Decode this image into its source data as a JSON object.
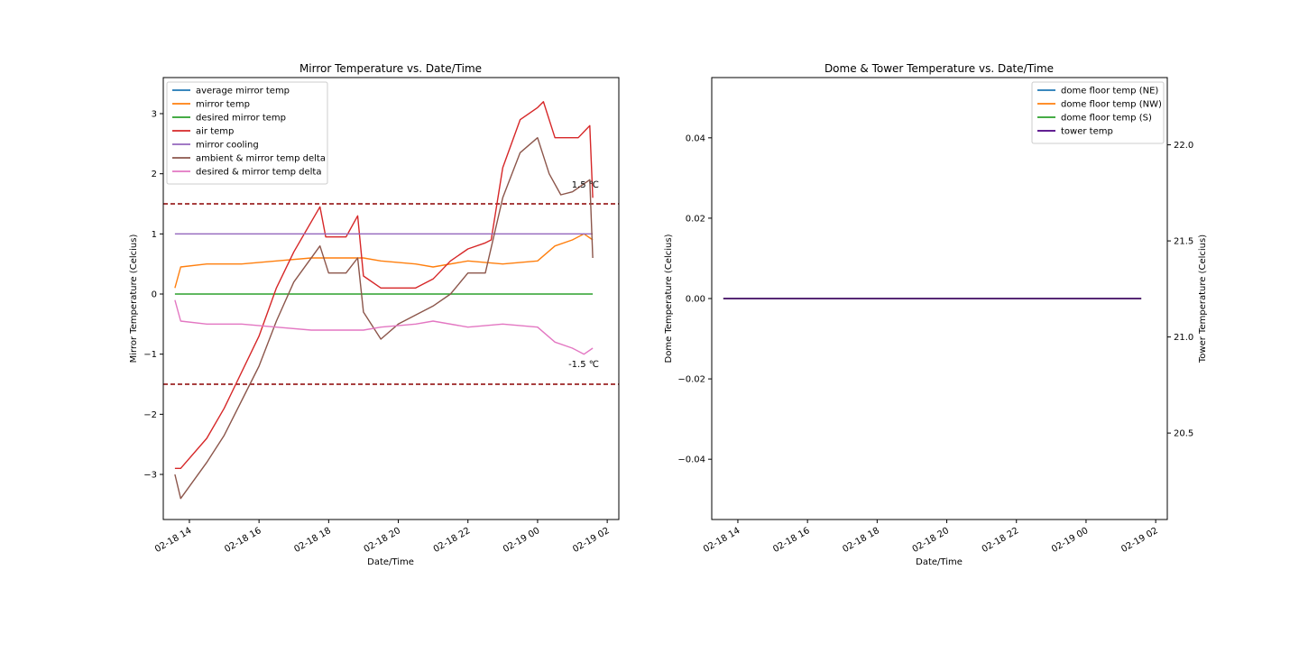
{
  "chart_data": [
    {
      "type": "line",
      "title": "Mirror Temperature vs. Date/Time",
      "xlabel": "Date/Time",
      "ylabel": "Mirror Temperature (Celcius)",
      "xlim": [
        "2018-02-18 13:15",
        "2018-02-19 02:20"
      ],
      "ylim": [
        -3.75,
        3.6
      ],
      "x_ticks": [
        "02-18 14",
        "02-18 16",
        "02-18 18",
        "02-18 20",
        "02-18 22",
        "02-19 00",
        "02-19 02"
      ],
      "y_ticks": [
        -3,
        -2,
        -1,
        0,
        1,
        2,
        3
      ],
      "y_tick_labels": [
        "−3",
        "−2",
        "−1",
        "0",
        "1",
        "2",
        "3"
      ],
      "legend_position": "upper-left",
      "grid": false,
      "thresholds": [
        {
          "y": 1.5,
          "label": "1.5 ℃",
          "color": "#8b0000",
          "style": "dashed"
        },
        {
          "y": -1.5,
          "label": "-1.5 ℃",
          "color": "#8b0000",
          "style": "dashed"
        }
      ],
      "series": [
        {
          "name": "average mirror temp",
          "color": "#1f77b4",
          "x": [],
          "values": []
        },
        {
          "name": "mirror temp",
          "color": "#ff7f0e",
          "x": [
            "2018-02-18 13:35",
            "2018-02-18 13:45",
            "2018-02-18 14:30",
            "2018-02-18 15:30",
            "2018-02-18 16:30",
            "2018-02-18 17:30",
            "2018-02-18 18:30",
            "2018-02-18 19:00",
            "2018-02-18 19:30",
            "2018-02-18 20:30",
            "2018-02-18 21:00",
            "2018-02-18 22:00",
            "2018-02-18 23:00",
            "2018-02-19 00:00",
            "2018-02-19 00:30",
            "2018-02-19 01:00",
            "2018-02-19 01:20",
            "2018-02-19 01:35"
          ],
          "values": [
            0.1,
            0.45,
            0.5,
            0.5,
            0.55,
            0.6,
            0.6,
            0.6,
            0.55,
            0.5,
            0.45,
            0.55,
            0.5,
            0.55,
            0.8,
            0.9,
            1.0,
            0.9
          ]
        },
        {
          "name": "desired mirror temp",
          "color": "#2ca02c",
          "x": [
            "2018-02-18 13:35",
            "2018-02-19 01:35"
          ],
          "values": [
            0,
            0
          ]
        },
        {
          "name": "air temp",
          "color": "#d62728",
          "x": [
            "2018-02-18 13:35",
            "2018-02-18 13:45",
            "2018-02-18 14:30",
            "2018-02-18 15:00",
            "2018-02-18 16:00",
            "2018-02-18 16:30",
            "2018-02-18 17:00",
            "2018-02-18 17:45",
            "2018-02-18 17:55",
            "2018-02-18 18:30",
            "2018-02-18 18:50",
            "2018-02-18 19:00",
            "2018-02-18 19:30",
            "2018-02-18 20:00",
            "2018-02-18 20:30",
            "2018-02-18 21:00",
            "2018-02-18 21:30",
            "2018-02-18 22:00",
            "2018-02-18 22:30",
            "2018-02-18 22:40",
            "2018-02-18 23:00",
            "2018-02-18 23:30",
            "2018-02-19 00:00",
            "2018-02-19 00:10",
            "2018-02-19 00:30",
            "2018-02-19 00:50",
            "2018-02-19 01:10",
            "2018-02-19 01:20",
            "2018-02-19 01:30",
            "2018-02-19 01:35"
          ],
          "values": [
            -2.9,
            -2.9,
            -2.4,
            -1.9,
            -0.7,
            0.1,
            0.7,
            1.45,
            0.95,
            0.95,
            1.3,
            0.3,
            0.1,
            0.1,
            0.1,
            0.25,
            0.55,
            0.75,
            0.85,
            0.9,
            2.1,
            2.9,
            3.1,
            3.2,
            2.6,
            2.6,
            2.6,
            2.7,
            2.8,
            1.6
          ]
        },
        {
          "name": "mirror cooling",
          "color": "#9467bd",
          "x": [
            "2018-02-18 13:35",
            "2018-02-19 01:35"
          ],
          "values": [
            1,
            1
          ]
        },
        {
          "name": "ambient & mirror temp delta",
          "color": "#8c564b",
          "x": [
            "2018-02-18 13:35",
            "2018-02-18 13:45",
            "2018-02-18 14:30",
            "2018-02-18 15:00",
            "2018-02-18 16:00",
            "2018-02-18 16:30",
            "2018-02-18 17:00",
            "2018-02-18 17:45",
            "2018-02-18 18:00",
            "2018-02-18 18:30",
            "2018-02-18 18:50",
            "2018-02-18 19:00",
            "2018-02-18 19:30",
            "2018-02-18 20:00",
            "2018-02-18 20:30",
            "2018-02-18 21:00",
            "2018-02-18 21:30",
            "2018-02-18 22:00",
            "2018-02-18 22:30",
            "2018-02-18 23:00",
            "2018-02-18 23:30",
            "2018-02-19 00:00",
            "2018-02-19 00:20",
            "2018-02-19 00:40",
            "2018-02-19 01:00",
            "2018-02-19 01:15",
            "2018-02-19 01:30",
            "2018-02-19 01:35"
          ],
          "values": [
            -3.0,
            -3.4,
            -2.8,
            -2.35,
            -1.2,
            -0.45,
            0.2,
            0.8,
            0.35,
            0.35,
            0.6,
            -0.3,
            -0.75,
            -0.5,
            -0.35,
            -0.2,
            0.0,
            0.35,
            0.35,
            1.6,
            2.35,
            2.6,
            2.0,
            1.65,
            1.7,
            1.8,
            1.9,
            0.6
          ]
        },
        {
          "name": "desired & mirror temp delta",
          "color": "#e377c2",
          "x": [
            "2018-02-18 13:35",
            "2018-02-18 13:45",
            "2018-02-18 14:30",
            "2018-02-18 15:30",
            "2018-02-18 16:30",
            "2018-02-18 17:30",
            "2018-02-18 18:30",
            "2018-02-18 19:00",
            "2018-02-18 19:30",
            "2018-02-18 20:30",
            "2018-02-18 21:00",
            "2018-02-18 22:00",
            "2018-02-18 23:00",
            "2018-02-19 00:00",
            "2018-02-19 00:30",
            "2018-02-19 01:00",
            "2018-02-19 01:20",
            "2018-02-19 01:35"
          ],
          "values": [
            -0.1,
            -0.45,
            -0.5,
            -0.5,
            -0.55,
            -0.6,
            -0.6,
            -0.6,
            -0.55,
            -0.5,
            -0.45,
            -0.55,
            -0.5,
            -0.55,
            -0.8,
            -0.9,
            -1.0,
            -0.9
          ]
        }
      ]
    },
    {
      "type": "line",
      "title": "Dome & Tower Temperature vs. Date/Time",
      "xlabel": "Date/Time",
      "ylabel": "Dome Temperature (Celcius)",
      "y2label": "Tower Temperature (Celcius)",
      "xlim": [
        "2018-02-18 13:15",
        "2018-02-19 02:20"
      ],
      "ylim": [
        -0.055,
        0.055
      ],
      "y2lim": [
        20.05,
        22.35
      ],
      "x_ticks": [
        "02-18 14",
        "02-18 16",
        "02-18 18",
        "02-18 20",
        "02-18 22",
        "02-19 00",
        "02-19 02"
      ],
      "y_ticks": [
        -0.04,
        -0.02,
        0.0,
        0.02,
        0.04
      ],
      "y_tick_labels": [
        "−0.04",
        "−0.02",
        "0.00",
        "0.02",
        "0.04"
      ],
      "y2_ticks": [
        20.5,
        21.0,
        21.5,
        22.0
      ],
      "y2_tick_labels": [
        "20.5",
        "21.0",
        "21.5",
        "22.0"
      ],
      "legend_position": "upper-right",
      "grid": false,
      "series": [
        {
          "name": "dome floor temp (NE)",
          "color": "#1f77b4",
          "axis": "left",
          "x": [
            "2018-02-18 13:35",
            "2018-02-19 01:35"
          ],
          "values": [
            0,
            0
          ]
        },
        {
          "name": "dome floor temp (NW)",
          "color": "#ff7f0e",
          "axis": "left",
          "x": [
            "2018-02-18 13:35",
            "2018-02-19 01:35"
          ],
          "values": [
            0,
            0
          ]
        },
        {
          "name": "dome floor temp (S)",
          "color": "#2ca02c",
          "axis": "left",
          "x": [
            "2018-02-18 13:35",
            "2018-02-19 01:35"
          ],
          "values": [
            0,
            0
          ]
        },
        {
          "name": "tower temp",
          "color": "#4b0082",
          "axis": "right",
          "x": [
            "2018-02-18 13:35",
            "2018-02-19 01:35"
          ],
          "values": [
            21.2,
            21.2
          ]
        }
      ]
    }
  ]
}
